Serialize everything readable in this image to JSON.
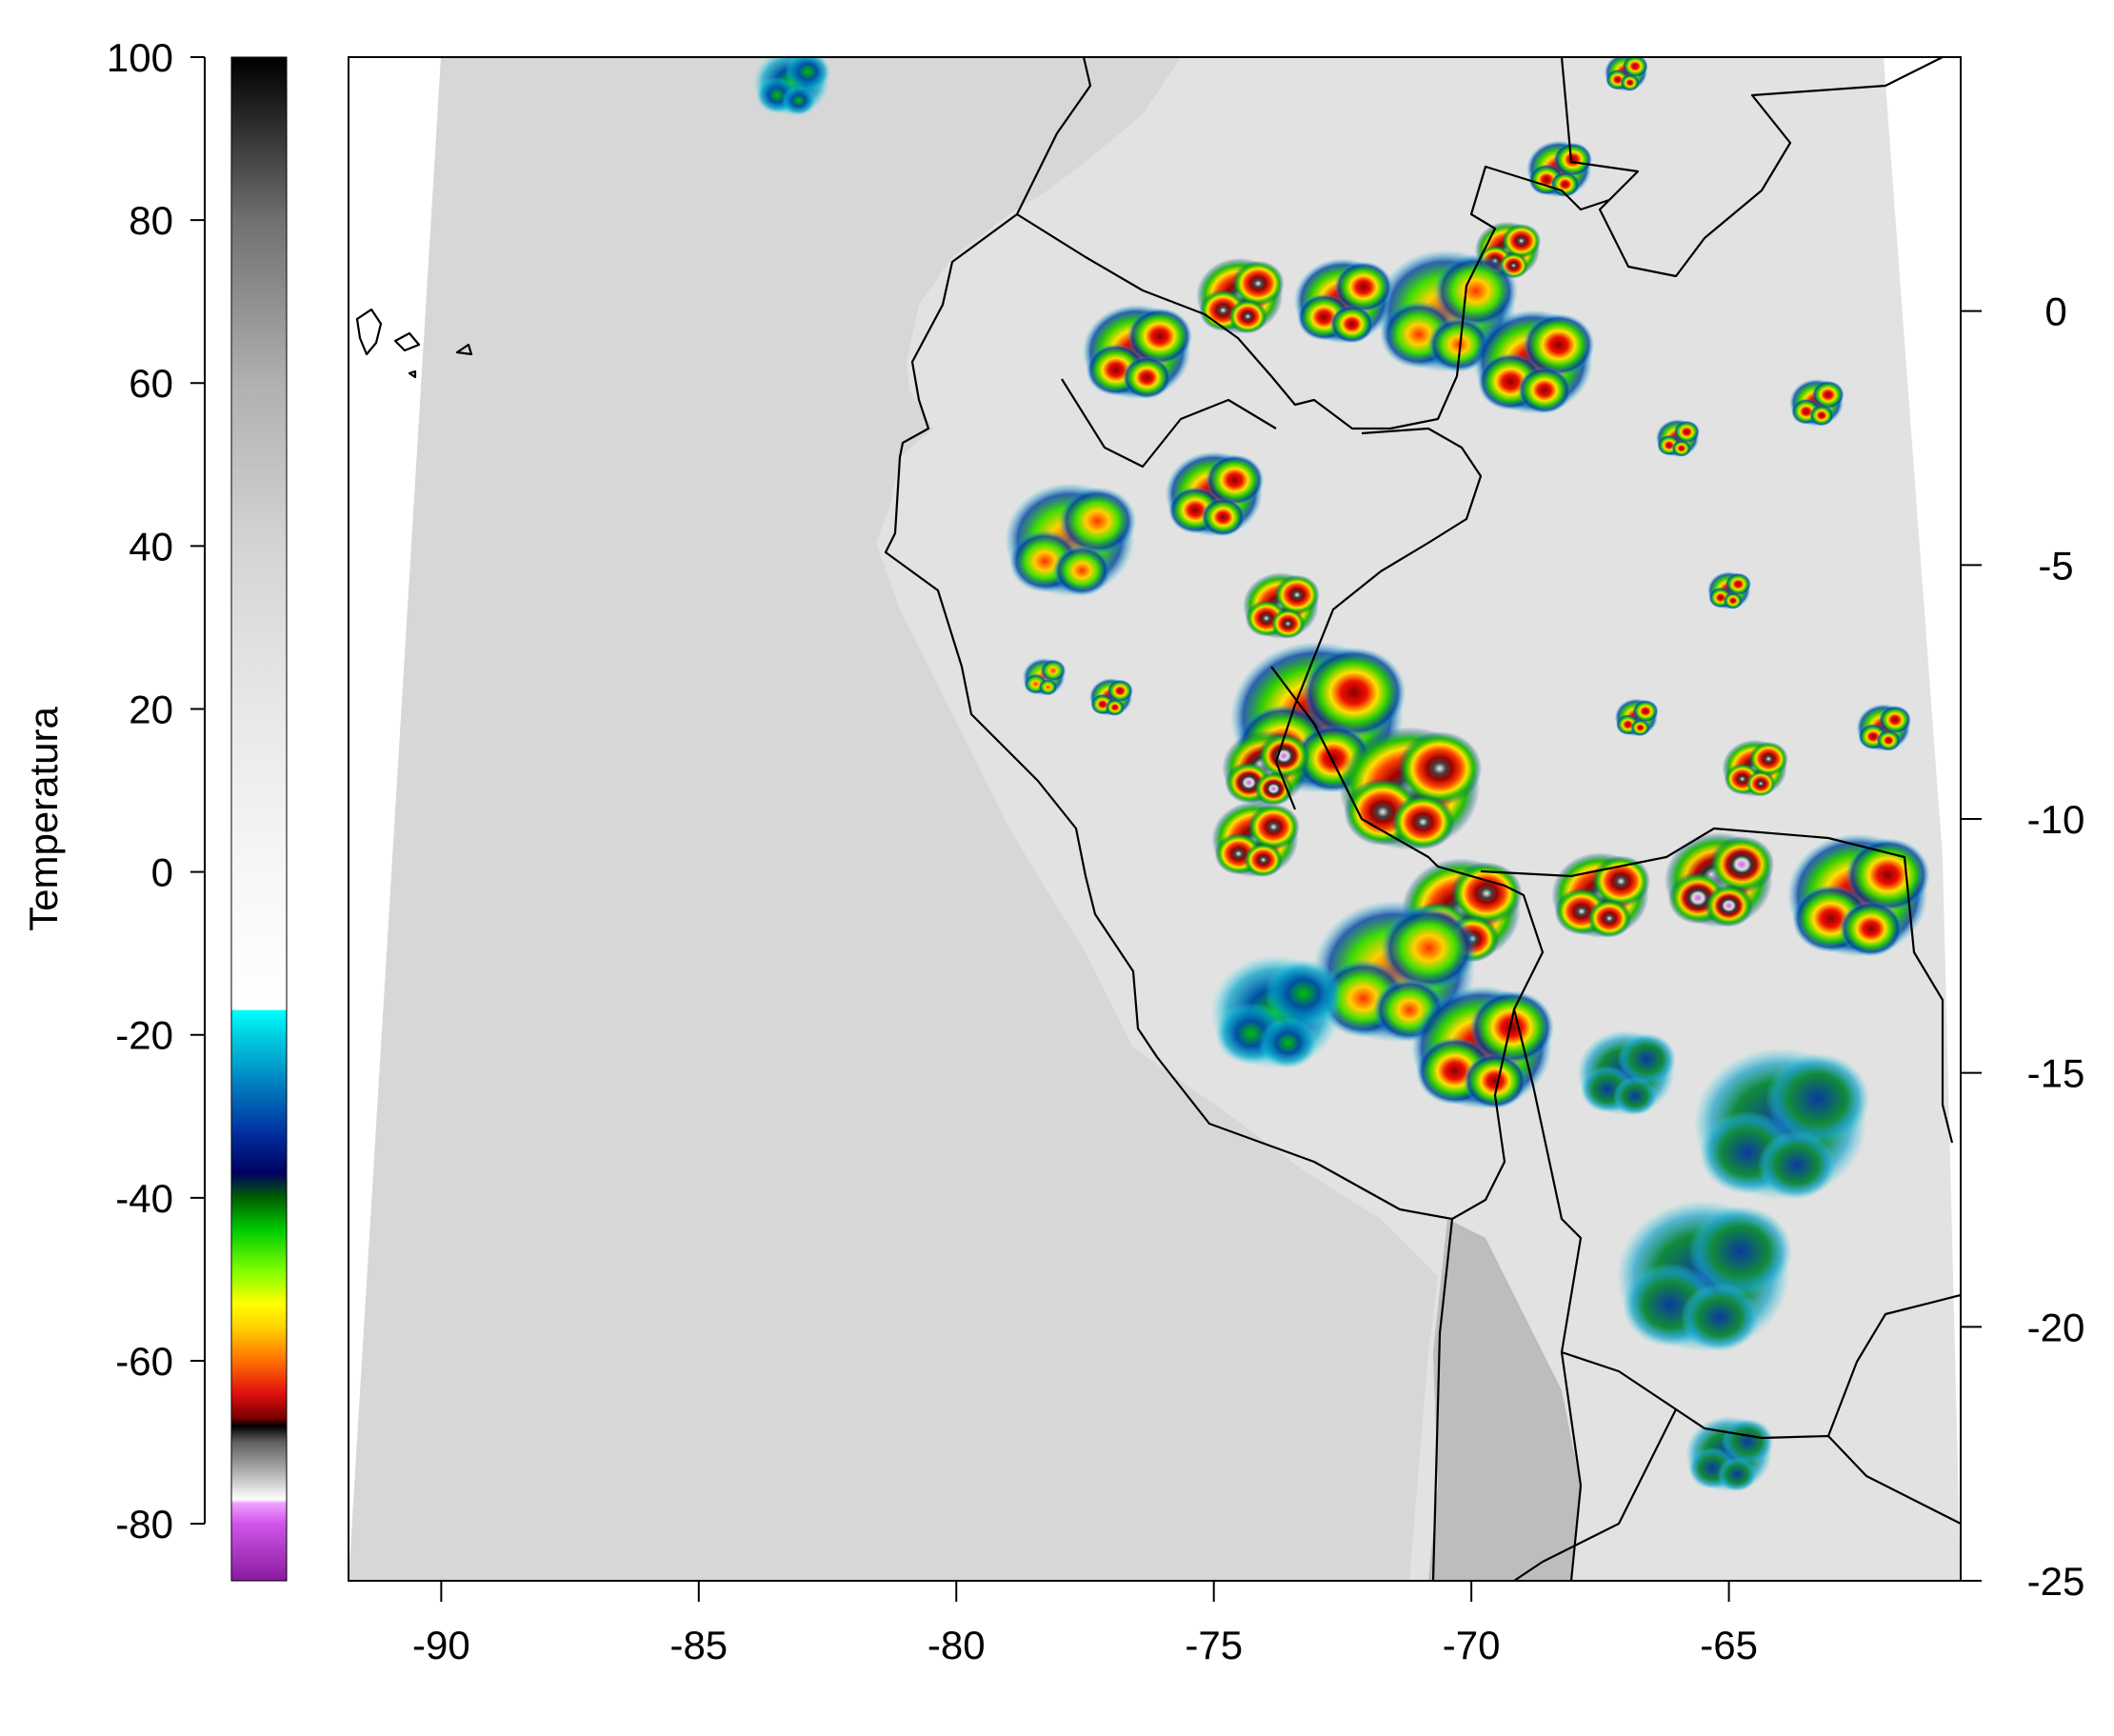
{
  "colorbar": {
    "label": "Temperatura",
    "ticks": [
      100,
      80,
      60,
      40,
      20,
      0,
      -20,
      -40,
      -60,
      -80
    ],
    "range": [
      -87,
      100
    ],
    "stops": [
      {
        "t": -87,
        "color": "#8a1a9e"
      },
      {
        "t": -80,
        "color": "#cf55ea"
      },
      {
        "t": -77.5,
        "color": "#f0a0ff"
      },
      {
        "t": -77,
        "color": "#ffffff"
      },
      {
        "t": -74,
        "color": "#b8b8b8"
      },
      {
        "t": -70,
        "color": "#606060"
      },
      {
        "t": -68,
        "color": "#000000"
      },
      {
        "t": -67,
        "color": "#7a0000"
      },
      {
        "t": -64,
        "color": "#e01010"
      },
      {
        "t": -60,
        "color": "#ff7000"
      },
      {
        "t": -56,
        "color": "#ffd000"
      },
      {
        "t": -53,
        "color": "#ffff00"
      },
      {
        "t": -49,
        "color": "#80ff00"
      },
      {
        "t": -44,
        "color": "#00cc00"
      },
      {
        "t": -40,
        "color": "#006000"
      },
      {
        "t": -37,
        "color": "#000060"
      },
      {
        "t": -32,
        "color": "#0030a0"
      },
      {
        "t": -26,
        "color": "#0080c0"
      },
      {
        "t": -20,
        "color": "#00d0e0"
      },
      {
        "t": -17,
        "color": "#00ffff"
      },
      {
        "t": -16.9,
        "color": "#ffffff"
      },
      {
        "t": 0,
        "color": "#f7f7f7"
      },
      {
        "t": 20,
        "color": "#e8e8e8"
      },
      {
        "t": 40,
        "color": "#d4d4d4"
      },
      {
        "t": 60,
        "color": "#b0b0b0"
      },
      {
        "t": 80,
        "color": "#707070"
      },
      {
        "t": 95,
        "color": "#1a1a1a"
      },
      {
        "t": 100,
        "color": "#000000"
      }
    ]
  },
  "map": {
    "x_ticks": [
      "-90",
      "-85",
      "-80",
      "-75",
      "-70",
      "-65"
    ],
    "x_values": [
      -90,
      -85,
      -80,
      -75,
      -70,
      -65
    ],
    "y_ticks": [
      "0",
      "-5",
      "-10",
      "-15",
      "-20",
      "-25"
    ],
    "y_values": [
      0,
      -5,
      -10,
      -15,
      -20,
      -25
    ],
    "lon_range": [
      -91.8,
      -60.5
    ],
    "lat_range": [
      -25,
      5
    ],
    "colors": {
      "ocean": "#d7d7d7",
      "land": "#e2e2e2",
      "cold_land": "#bdbdbd",
      "borders": "#000000"
    },
    "cloud_clusters": [
      {
        "lon": -83.2,
        "lat": 4.5,
        "r": 0.7,
        "level": 2
      },
      {
        "lon": -68.3,
        "lat": 2.8,
        "r": 0.6,
        "level": 4
      },
      {
        "lon": -67.0,
        "lat": 4.7,
        "r": 0.4,
        "level": 4
      },
      {
        "lon": -69.3,
        "lat": 1.2,
        "r": 0.6,
        "level": 5
      },
      {
        "lon": -70.5,
        "lat": 0.0,
        "r": 1.3,
        "level": 3
      },
      {
        "lon": -68.8,
        "lat": -1.0,
        "r": 1.1,
        "level": 4
      },
      {
        "lon": -72.5,
        "lat": 0.2,
        "r": 0.9,
        "level": 4
      },
      {
        "lon": -74.5,
        "lat": 0.3,
        "r": 0.8,
        "level": 5
      },
      {
        "lon": -76.5,
        "lat": -0.8,
        "r": 1.0,
        "level": 4
      },
      {
        "lon": -75.0,
        "lat": -3.6,
        "r": 0.9,
        "level": 4
      },
      {
        "lon": -77.8,
        "lat": -4.5,
        "r": 1.2,
        "level": 3
      },
      {
        "lon": -73.7,
        "lat": -5.8,
        "r": 0.7,
        "level": 5
      },
      {
        "lon": -73.0,
        "lat": -8.0,
        "r": 1.6,
        "level": 4
      },
      {
        "lon": -74.0,
        "lat": -9.0,
        "r": 0.8,
        "level": 6
      },
      {
        "lon": -71.2,
        "lat": -9.4,
        "r": 1.3,
        "level": 5
      },
      {
        "lon": -74.2,
        "lat": -10.4,
        "r": 0.8,
        "level": 5
      },
      {
        "lon": -70.2,
        "lat": -11.8,
        "r": 1.1,
        "level": 5
      },
      {
        "lon": -71.5,
        "lat": -13.0,
        "r": 1.5,
        "level": 3
      },
      {
        "lon": -69.8,
        "lat": -14.5,
        "r": 1.3,
        "level": 4
      },
      {
        "lon": -73.8,
        "lat": -13.8,
        "r": 1.2,
        "level": 2
      },
      {
        "lon": -67.5,
        "lat": -11.5,
        "r": 0.9,
        "level": 5
      },
      {
        "lon": -65.2,
        "lat": -11.2,
        "r": 1.0,
        "level": 6
      },
      {
        "lon": -62.5,
        "lat": -11.5,
        "r": 1.3,
        "level": 4
      },
      {
        "lon": -64.5,
        "lat": -9.0,
        "r": 0.6,
        "level": 5
      },
      {
        "lon": -62.0,
        "lat": -8.2,
        "r": 0.5,
        "level": 4
      },
      {
        "lon": -66.0,
        "lat": -2.5,
        "r": 0.4,
        "level": 4
      },
      {
        "lon": -63.3,
        "lat": -1.8,
        "r": 0.5,
        "level": 4
      },
      {
        "lon": -65.0,
        "lat": -5.5,
        "r": 0.4,
        "level": 4
      },
      {
        "lon": -66.8,
        "lat": -8.0,
        "r": 0.4,
        "level": 4
      },
      {
        "lon": -64.0,
        "lat": -16.0,
        "r": 1.6,
        "level": 1
      },
      {
        "lon": -65.5,
        "lat": -19.0,
        "r": 1.6,
        "level": 1
      },
      {
        "lon": -65.0,
        "lat": -22.5,
        "r": 0.8,
        "level": 1
      },
      {
        "lon": -67.0,
        "lat": -15.0,
        "r": 0.9,
        "level": 1
      },
      {
        "lon": -78.3,
        "lat": -7.2,
        "r": 0.4,
        "level": 3
      },
      {
        "lon": -77.0,
        "lat": -7.6,
        "r": 0.4,
        "level": 4
      }
    ]
  }
}
